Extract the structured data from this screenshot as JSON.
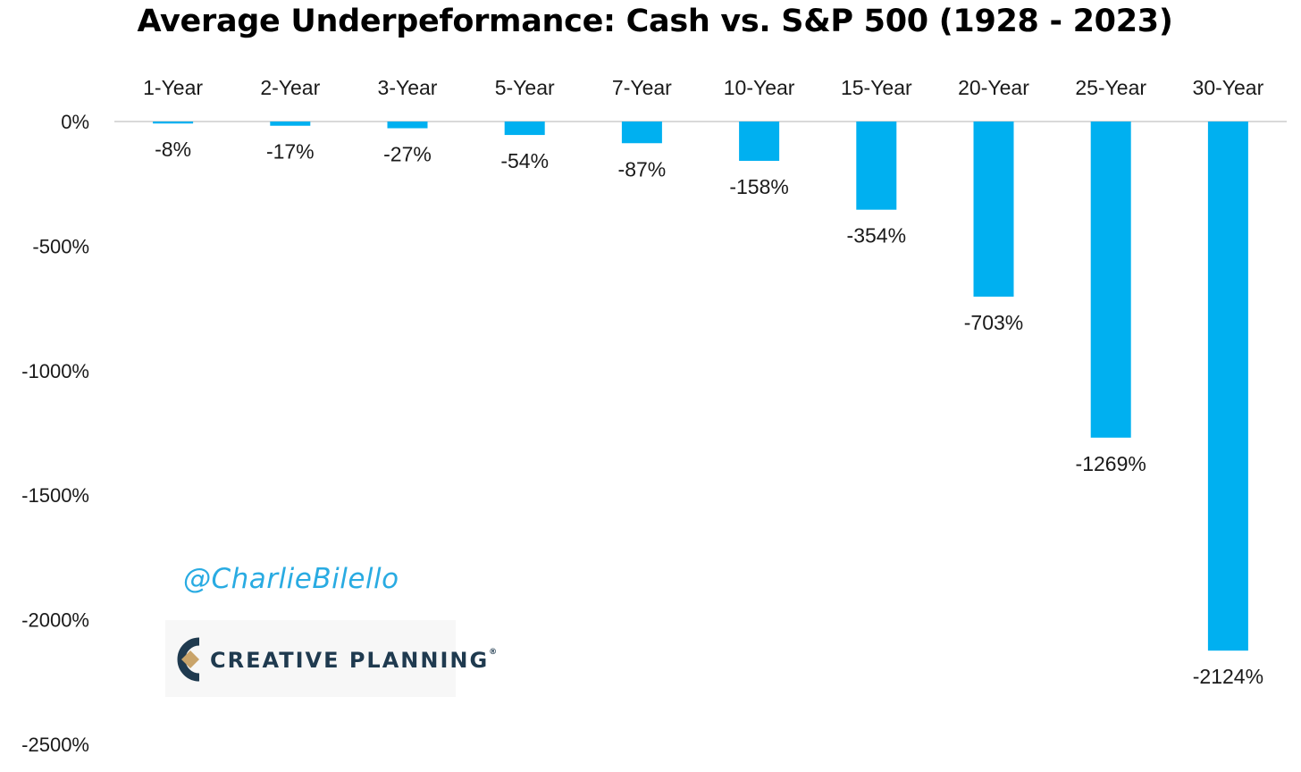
{
  "chart_data": {
    "type": "bar",
    "title": "Average Underpeformance: Cash vs. S&P 500 (1928 - 2023)",
    "categories": [
      "1-Year",
      "2-Year",
      "3-Year",
      "5-Year",
      "7-Year",
      "10-Year",
      "15-Year",
      "20-Year",
      "25-Year",
      "30-Year"
    ],
    "values": [
      -8,
      -17,
      -27,
      -54,
      -87,
      -158,
      -354,
      -703,
      -1269,
      -2124
    ],
    "data_labels": [
      "-8%",
      "-17%",
      "-27%",
      "-54%",
      "-87%",
      "-158%",
      "-354%",
      "-703%",
      "-1269%",
      "-2124%"
    ],
    "ylim": [
      -2500,
      0
    ],
    "yticks": [
      0,
      -500,
      -1000,
      -1500,
      -2000,
      -2500
    ],
    "ytick_labels": [
      "0%",
      "-500%",
      "-1000%",
      "-1500%",
      "-2000%",
      "-2500%"
    ],
    "category_axis_position": "top",
    "grid": false,
    "legend": "none",
    "colors": {
      "bar": "#00b0f0",
      "axis": "#d9d9d9",
      "text": "#1a1a1a"
    }
  },
  "watermark": "@CharlieBilello",
  "logo": {
    "text": "CREATIVE PLANNING",
    "mark": "®"
  }
}
